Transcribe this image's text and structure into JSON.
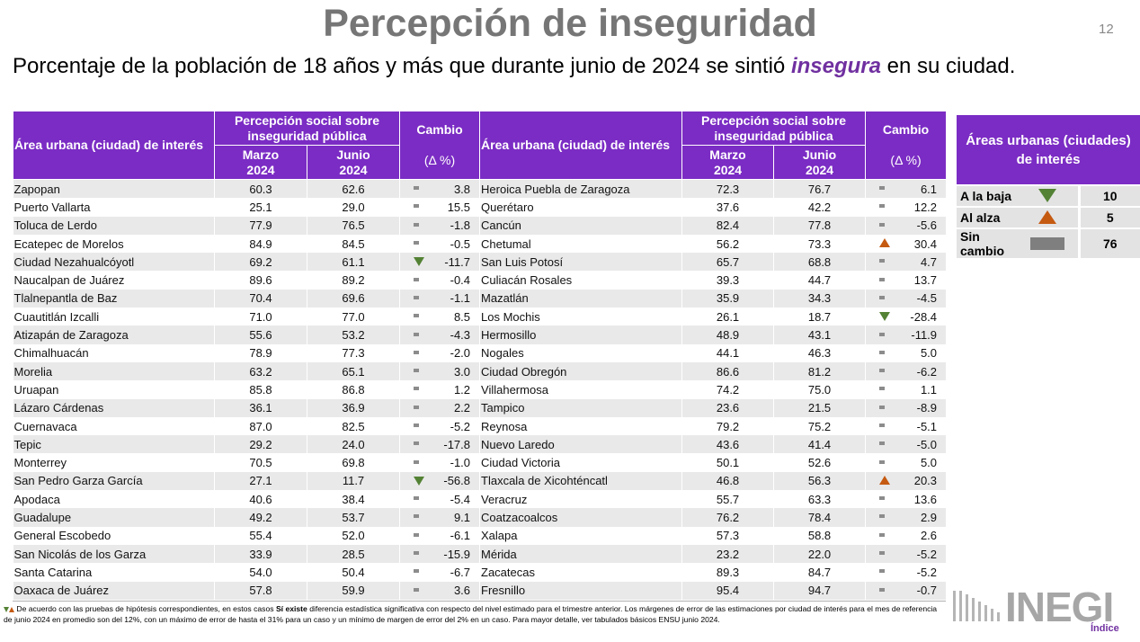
{
  "title": "Percepción de inseguridad",
  "page_number": "12",
  "subtitle": {
    "before": "Porcentaje de la población de 18 años y más que durante junio de 2024 se sintió",
    "emphasis": "insegura",
    "after": "en su ciudad."
  },
  "table": {
    "headers": {
      "area": "Área urbana (ciudad) de interés",
      "perception": "Percepción social sobre inseguridad pública",
      "change": "Cambio",
      "change_unit": "(Δ %)",
      "march": "Marzo 2024",
      "june": "Junio 2024"
    },
    "left_rows": [
      [
        "Zapopan",
        "60.3",
        "62.6",
        "same",
        "3.8"
      ],
      [
        "Puerto Vallarta",
        "25.1",
        "29.0",
        "same",
        "15.5"
      ],
      [
        "Toluca de Lerdo",
        "77.9",
        "76.5",
        "same",
        "-1.8"
      ],
      [
        "Ecatepec de Morelos",
        "84.9",
        "84.5",
        "same",
        "-0.5"
      ],
      [
        "Ciudad Nezahualcóyotl",
        "69.2",
        "61.1",
        "down",
        "-11.7"
      ],
      [
        "Naucalpan de Juárez",
        "89.6",
        "89.2",
        "same",
        "-0.4"
      ],
      [
        "Tlalnepantla de Baz",
        "70.4",
        "69.6",
        "same",
        "-1.1"
      ],
      [
        "Cuautitlán Izcalli",
        "71.0",
        "77.0",
        "same",
        "8.5"
      ],
      [
        "Atizapán de Zaragoza",
        "55.6",
        "53.2",
        "same",
        "-4.3"
      ],
      [
        "Chimalhuacán",
        "78.9",
        "77.3",
        "same",
        "-2.0"
      ],
      [
        "Morelia",
        "63.2",
        "65.1",
        "same",
        "3.0"
      ],
      [
        "Uruapan",
        "85.8",
        "86.8",
        "same",
        "1.2"
      ],
      [
        "Lázaro Cárdenas",
        "36.1",
        "36.9",
        "same",
        "2.2"
      ],
      [
        "Cuernavaca",
        "87.0",
        "82.5",
        "same",
        "-5.2"
      ],
      [
        "Tepic",
        "29.2",
        "24.0",
        "same",
        "-17.8"
      ],
      [
        "Monterrey",
        "70.5",
        "69.8",
        "same",
        "-1.0"
      ],
      [
        "San Pedro Garza García",
        "27.1",
        "11.7",
        "down",
        "-56.8"
      ],
      [
        "Apodaca",
        "40.6",
        "38.4",
        "same",
        "-5.4"
      ],
      [
        "Guadalupe",
        "49.2",
        "53.7",
        "same",
        "9.1"
      ],
      [
        "General Escobedo",
        "55.4",
        "52.0",
        "same",
        "-6.1"
      ],
      [
        "San Nicolás de los Garza",
        "33.9",
        "28.5",
        "same",
        "-15.9"
      ],
      [
        "Santa Catarina",
        "54.0",
        "50.4",
        "same",
        "-6.7"
      ],
      [
        "Oaxaca de Juárez",
        "57.8",
        "59.9",
        "same",
        "3.6"
      ]
    ],
    "right_rows": [
      [
        "Heroica Puebla de Zaragoza",
        "72.3",
        "76.7",
        "same",
        "6.1"
      ],
      [
        "Querétaro",
        "37.6",
        "42.2",
        "same",
        "12.2"
      ],
      [
        "Cancún",
        "82.4",
        "77.8",
        "same",
        "-5.6"
      ],
      [
        "Chetumal",
        "56.2",
        "73.3",
        "up",
        "30.4"
      ],
      [
        "San Luis Potosí",
        "65.7",
        "68.8",
        "same",
        "4.7"
      ],
      [
        "Culiacán Rosales",
        "39.3",
        "44.7",
        "same",
        "13.7"
      ],
      [
        "Mazatlán",
        "35.9",
        "34.3",
        "same",
        "-4.5"
      ],
      [
        "Los Mochis",
        "26.1",
        "18.7",
        "down",
        "-28.4"
      ],
      [
        "Hermosillo",
        "48.9",
        "43.1",
        "same",
        "-11.9"
      ],
      [
        "Nogales",
        "44.1",
        "46.3",
        "same",
        "5.0"
      ],
      [
        "Ciudad Obregón",
        "86.6",
        "81.2",
        "same",
        "-6.2"
      ],
      [
        "Villahermosa",
        "74.2",
        "75.0",
        "same",
        "1.1"
      ],
      [
        "Tampico",
        "23.6",
        "21.5",
        "same",
        "-8.9"
      ],
      [
        "Reynosa",
        "79.2",
        "75.2",
        "same",
        "-5.1"
      ],
      [
        "Nuevo Laredo",
        "43.6",
        "41.4",
        "same",
        "-5.0"
      ],
      [
        "Ciudad Victoria",
        "50.1",
        "52.6",
        "same",
        "5.0"
      ],
      [
        "Tlaxcala de Xicohténcatl",
        "46.8",
        "56.3",
        "up",
        "20.3"
      ],
      [
        "Veracruz",
        "55.7",
        "63.3",
        "same",
        "13.6"
      ],
      [
        "Coatzacoalcos",
        "76.2",
        "78.4",
        "same",
        "2.9"
      ],
      [
        "Xalapa",
        "57.3",
        "58.8",
        "same",
        "2.6"
      ],
      [
        "Mérida",
        "23.2",
        "22.0",
        "same",
        "-5.2"
      ],
      [
        "Zacatecas",
        "89.3",
        "84.7",
        "same",
        "-5.2"
      ],
      [
        "Fresnillo",
        "95.4",
        "94.7",
        "same",
        "-0.7"
      ]
    ]
  },
  "summary": {
    "title": "Áreas urbanas (ciudades) de interés",
    "rows": [
      [
        "A la baja",
        "down",
        "10"
      ],
      [
        "Al alza",
        "up",
        "5"
      ],
      [
        "Sin cambio",
        "same",
        "76"
      ]
    ]
  },
  "footnote": {
    "before": "De acuerdo con las pruebas de hipótesis correspondientes, en estos casos",
    "bold": "Sí existe",
    "after": "diferencia estadística significativa con respecto del nivel estimado para el trimestre anterior. Los márgenes de error de las estimaciones por ciudad de interés para el mes de referencia de junio 2024 en promedio son del 12%, con un máximo de error de hasta el 31% para un caso y un mínimo de margen de error del 2% en un caso. Para mayor detalle, ver tabulados básicos ENSU junio 2024."
  },
  "logo": "INEGI",
  "link": "Índice"
}
